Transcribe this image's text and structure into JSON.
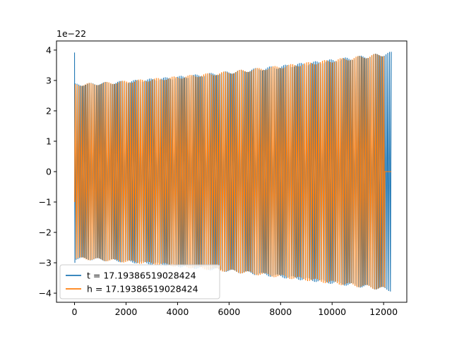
{
  "chart_data": {
    "type": "line",
    "title": "",
    "xlabel": "",
    "ylabel": "",
    "y_offset_label": "1e−22",
    "xlim": [
      -700,
      12900
    ],
    "ylim": [
      -4.3,
      4.3
    ],
    "x_ticks": [
      0,
      2000,
      4000,
      6000,
      8000,
      10000,
      12000
    ],
    "x_tick_labels": [
      "0",
      "2000",
      "4000",
      "6000",
      "8000",
      "10000",
      "12000"
    ],
    "y_ticks": [
      -4,
      -3,
      -2,
      -1,
      0,
      1,
      2,
      3,
      4
    ],
    "y_tick_labels": [
      "−4",
      "−3",
      "−2",
      "−1",
      "0",
      "1",
      "2",
      "3",
      "4"
    ],
    "grid": false,
    "legend_position": "lower-left",
    "series": [
      {
        "name": "t = 17.19386519028424",
        "color": "#1f77b4",
        "kind": "chirp",
        "x_start": 0,
        "x_end": 12300,
        "amp_start": 2.9,
        "amp_end": 3.95,
        "initial_spike": 3.92
      },
      {
        "name": "h = 17.19386519028424",
        "color": "#ff7f0e",
        "kind": "chirp",
        "x_start": 0,
        "x_end": 12050,
        "amp_start": 2.9,
        "amp_end": 3.92,
        "tail_x_end": 12300,
        "tail_value": 0
      }
    ]
  }
}
